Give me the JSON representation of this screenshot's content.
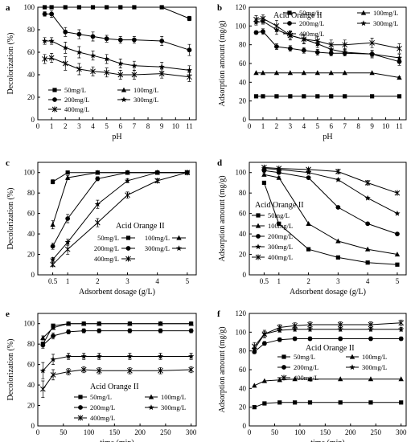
{
  "chart_data": [
    {
      "panel_label": "a",
      "type": "line",
      "xlabel": "pH",
      "ylabel": "Decolorization   (%)",
      "xlim": [
        0,
        11.5
      ],
      "ylim": [
        0,
        100
      ],
      "xticks": [
        0,
        1,
        2,
        3,
        4,
        5,
        6,
        7,
        8,
        9,
        10,
        11
      ],
      "yticks": [
        0,
        20,
        40,
        60,
        80,
        100
      ],
      "grid": false,
      "legend_position": "bottom",
      "annotation": "",
      "x": [
        0.5,
        1,
        2,
        3,
        4,
        5,
        6,
        7,
        9,
        11
      ],
      "series": [
        {
          "name": "50mg/L",
          "marker": "square",
          "values": [
            100,
            100,
            100,
            100,
            100,
            100,
            100,
            100,
            100,
            90
          ],
          "err": [
            1,
            1,
            1,
            1,
            1,
            1,
            1,
            1,
            1,
            2
          ]
        },
        {
          "name": "100mg/L",
          "marker": "triangle",
          "values": [
            100,
            100,
            100,
            100,
            100,
            100,
            100,
            100,
            100,
            90
          ],
          "err": [
            0,
            0,
            0,
            0,
            0,
            0,
            0,
            0,
            0,
            0
          ],
          "hidden": true
        },
        {
          "name": "200mg/L",
          "marker": "circle",
          "values": [
            94,
            94,
            78,
            76,
            74,
            72,
            71,
            71,
            70,
            62
          ],
          "err": [
            2,
            3,
            4,
            4,
            4,
            3,
            3,
            3,
            4,
            5
          ]
        },
        {
          "name": "300mg/L",
          "marker": "star",
          "values": [
            70,
            70,
            64,
            60,
            57,
            54,
            50,
            48,
            47,
            44
          ],
          "err": [
            3,
            3,
            5,
            5,
            4,
            4,
            4,
            4,
            4,
            4
          ]
        },
        {
          "name": "400mg/L",
          "marker": "cross",
          "values": [
            54,
            55,
            50,
            45,
            43,
            42,
            40,
            40,
            41,
            38
          ],
          "err": [
            4,
            4,
            6,
            5,
            4,
            4,
            4,
            4,
            4,
            4
          ]
        }
      ]
    },
    {
      "panel_label": "b",
      "type": "line",
      "xlabel": "pH",
      "ylabel": "Adsorption amount   (mg/g)",
      "xlim": [
        0,
        11.5
      ],
      "ylim": [
        0,
        120
      ],
      "xticks": [
        0,
        1,
        2,
        3,
        4,
        5,
        6,
        7,
        8,
        9,
        10,
        11
      ],
      "yticks": [
        0,
        20,
        40,
        60,
        80,
        100,
        120
      ],
      "grid": false,
      "legend_position": "top",
      "annotation": "Acid Orange II",
      "x": [
        0.5,
        1,
        2,
        3,
        4,
        5,
        6,
        7,
        9,
        11
      ],
      "series": [
        {
          "name": "50mg/L",
          "marker": "square",
          "values": [
            25,
            25,
            25,
            25,
            25,
            25,
            25,
            25,
            25,
            25
          ],
          "err": [
            0,
            0,
            0,
            0,
            0,
            0,
            0,
            0,
            0,
            0
          ]
        },
        {
          "name": "100mg/L",
          "marker": "triangle",
          "values": [
            50,
            50,
            50,
            50,
            50,
            50,
            50,
            50,
            50,
            45
          ],
          "err": [
            0,
            0,
            0,
            0,
            0,
            0,
            0,
            0,
            0,
            1
          ]
        },
        {
          "name": "200mg/L",
          "marker": "circle",
          "values": [
            93,
            94,
            78,
            76,
            74,
            72,
            71,
            71,
            70,
            62
          ],
          "err": [
            2,
            3,
            3,
            3,
            3,
            3,
            3,
            3,
            3,
            4
          ]
        },
        {
          "name": "300mg/L",
          "marker": "star",
          "values": [
            104,
            105,
            96,
            90,
            86,
            81,
            75,
            72,
            70,
            66
          ],
          "err": [
            3,
            3,
            5,
            4,
            4,
            4,
            4,
            4,
            4,
            4
          ]
        },
        {
          "name": "400mg/L",
          "marker": "cross",
          "values": [
            107,
            108,
            100,
            90,
            86,
            84,
            80,
            80,
            82,
            76
          ],
          "err": [
            4,
            4,
            6,
            5,
            5,
            5,
            5,
            5,
            5,
            5
          ]
        }
      ]
    },
    {
      "panel_label": "c",
      "type": "line",
      "xlabel": "Adsorbent dosage   (g/L)",
      "ylabel": "Decolorization   (%)",
      "xlim": [
        0,
        5.3
      ],
      "ylim": [
        0,
        110
      ],
      "xticks": [
        0.5,
        1,
        2,
        3,
        4,
        5
      ],
      "yticks": [
        0,
        20,
        40,
        60,
        80,
        100
      ],
      "grid": false,
      "legend_position": "bottom-right",
      "annotation": "Acid Orange II",
      "x": [
        0.5,
        1,
        2,
        3,
        4,
        5
      ],
      "series": [
        {
          "name": "50mg/L",
          "marker": "square",
          "values": [
            91,
            100,
            100,
            100,
            100,
            100
          ],
          "err": [
            2,
            0,
            0,
            0,
            0,
            0
          ]
        },
        {
          "name": "100mg/L",
          "marker": "triangle",
          "values": [
            49,
            95,
            100,
            100,
            100,
            100
          ],
          "err": [
            4,
            2,
            0,
            0,
            0,
            0
          ]
        },
        {
          "name": "200mg/L",
          "marker": "circle",
          "values": [
            28,
            55,
            94,
            100,
            100,
            100
          ],
          "err": [
            3,
            4,
            2,
            0,
            0,
            0
          ]
        },
        {
          "name": "300mg/L",
          "marker": "star",
          "values": [
            15,
            32,
            69,
            92,
            100,
            100
          ],
          "err": [
            2,
            3,
            4,
            2,
            0,
            0
          ]
        },
        {
          "name": "400mg/L",
          "marker": "cross",
          "values": [
            10,
            25,
            51,
            78,
            92,
            100
          ],
          "err": [
            2,
            5,
            4,
            3,
            2,
            0
          ]
        }
      ]
    },
    {
      "panel_label": "d",
      "type": "line",
      "xlabel": "Adsorbent dosage   (g/L)",
      "ylabel": "Adsorption amount   (mg/g)",
      "xlim": [
        0,
        5.3
      ],
      "ylim": [
        0,
        110
      ],
      "xticks": [
        0.5,
        1,
        2,
        3,
        4,
        5
      ],
      "yticks": [
        0,
        20,
        40,
        60,
        80,
        100
      ],
      "grid": false,
      "legend_position": "left",
      "annotation": "Acid Orange II",
      "x": [
        0.5,
        1,
        2,
        3,
        4,
        5
      ],
      "series": [
        {
          "name": "50mg/L",
          "marker": "square",
          "values": [
            90,
            50,
            25,
            17,
            12,
            10
          ],
          "err": [
            1,
            0,
            0,
            0,
            0,
            0
          ]
        },
        {
          "name": "100mg/L",
          "marker": "triangle",
          "values": [
            98,
            95,
            50,
            33,
            25,
            20
          ],
          "err": [
            1,
            1,
            0,
            0,
            0,
            0
          ]
        },
        {
          "name": "200mg/L",
          "marker": "circle",
          "values": [
            102,
            100,
            95,
            66,
            50,
            40
          ],
          "err": [
            1,
            1,
            1,
            1,
            0,
            0
          ]
        },
        {
          "name": "300mg/L",
          "marker": "star",
          "values": [
            104,
            103,
            100,
            93,
            75,
            60
          ],
          "err": [
            1,
            1,
            1,
            1,
            1,
            0
          ]
        },
        {
          "name": "400mg/L",
          "marker": "cross",
          "values": [
            105,
            104,
            103,
            101,
            90,
            80
          ],
          "err": [
            1,
            1,
            1,
            2,
            2,
            1
          ]
        }
      ]
    },
    {
      "panel_label": "e",
      "type": "line",
      "xlabel": "time   (min)",
      "ylabel": "Decolorization   (%)",
      "xlim": [
        0,
        310
      ],
      "ylim": [
        0,
        110
      ],
      "xticks": [
        0,
        50,
        100,
        150,
        200,
        250,
        300
      ],
      "yticks": [
        0,
        20,
        40,
        60,
        80,
        100
      ],
      "grid": false,
      "legend_position": "bottom",
      "annotation": "Acid Orange II",
      "x": [
        10,
        30,
        60,
        90,
        120,
        180,
        240,
        300
      ],
      "series": [
        {
          "name": "50mg/L",
          "marker": "square",
          "values": [
            80,
            98,
            100,
            100,
            100,
            100,
            100,
            100
          ],
          "err": [
            2,
            1,
            0,
            0,
            0,
            0,
            0,
            0
          ]
        },
        {
          "name": "100mg/L",
          "marker": "triangle",
          "values": [
            86,
            96,
            100,
            100,
            100,
            100,
            100,
            100
          ],
          "err": [
            2,
            1,
            0,
            0,
            0,
            0,
            0,
            0
          ]
        },
        {
          "name": "200mg/L",
          "marker": "circle",
          "values": [
            79,
            88,
            92,
            93,
            93,
            93,
            93,
            93
          ],
          "err": [
            3,
            3,
            2,
            2,
            2,
            2,
            2,
            2
          ]
        },
        {
          "name": "300mg/L",
          "marker": "star",
          "values": [
            54,
            65,
            68,
            68,
            68,
            68,
            68,
            68
          ],
          "err": [
            8,
            5,
            3,
            3,
            3,
            3,
            3,
            3
          ]
        },
        {
          "name": "400mg/L",
          "marker": "cross",
          "values": [
            36,
            50,
            53,
            55,
            54,
            54,
            54,
            55
          ],
          "err": [
            8,
            5,
            3,
            3,
            3,
            3,
            3,
            3
          ]
        }
      ]
    },
    {
      "panel_label": "f",
      "type": "line",
      "xlabel": "time   (min)",
      "ylabel": "Adsorption amount   (mg/g)",
      "xlim": [
        0,
        310
      ],
      "ylim": [
        0,
        120
      ],
      "xticks": [
        0,
        50,
        100,
        150,
        200,
        250,
        300
      ],
      "yticks": [
        0,
        20,
        40,
        60,
        80,
        100,
        120
      ],
      "grid": false,
      "legend_position": "bottom",
      "annotation": "Acid Orange II",
      "x": [
        10,
        30,
        60,
        90,
        120,
        180,
        240,
        300
      ],
      "series": [
        {
          "name": "50mg/L",
          "marker": "square",
          "values": [
            20,
            24,
            25,
            25,
            25,
            25,
            25,
            25
          ],
          "err": [
            0,
            0,
            0,
            0,
            0,
            0,
            0,
            0
          ]
        },
        {
          "name": "100mg/L",
          "marker": "triangle",
          "values": [
            43,
            48,
            49,
            50,
            50,
            50,
            50,
            50
          ],
          "err": [
            0,
            0,
            0,
            0,
            0,
            0,
            0,
            0
          ]
        },
        {
          "name": "200mg/L",
          "marker": "circle",
          "values": [
            79,
            88,
            92,
            93,
            93,
            93,
            93,
            93
          ],
          "err": [
            2,
            2,
            2,
            2,
            2,
            2,
            2,
            2
          ]
        },
        {
          "name": "300mg/L",
          "marker": "star",
          "values": [
            82,
            98,
            102,
            103,
            103,
            103,
            103,
            103
          ],
          "err": [
            4,
            3,
            2,
            2,
            2,
            2,
            2,
            2
          ]
        },
        {
          "name": "400mg/L",
          "marker": "cross",
          "values": [
            85,
            98,
            105,
            107,
            108,
            108,
            108,
            110
          ],
          "err": [
            4,
            4,
            3,
            3,
            3,
            3,
            3,
            3
          ]
        }
      ]
    }
  ]
}
